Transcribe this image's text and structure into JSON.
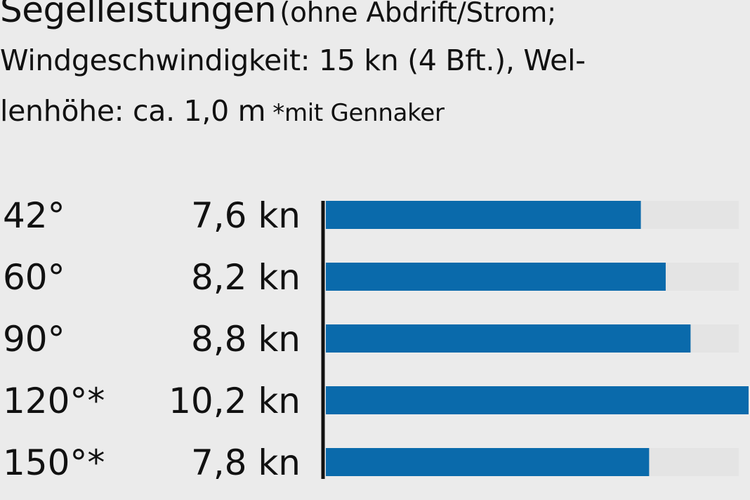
{
  "header": {
    "title": "Segelleistungen",
    "subtitle_part1": "(ohne Abdrift/Strom;",
    "subtitle_line2": "Windgeschwindigkeit: 15 kn (4 Bft.), Wel-",
    "subtitle_line3": "lenhöhe: ca. 1,0 m",
    "note": "*mit Gennaker"
  },
  "chart_data": {
    "type": "bar",
    "orientation": "horizontal",
    "categories": [
      "42°",
      "60°",
      "90°",
      "120°*",
      "150°*"
    ],
    "values": [
      7.6,
      8.2,
      8.8,
      10.2,
      7.8
    ],
    "value_labels": [
      "7,6 kn",
      "8,2 kn",
      "8,8 kn",
      "10,2 kn",
      "7,8 kn"
    ],
    "unit": "kn",
    "xlim": [
      0,
      10.2
    ],
    "grid": false,
    "colors": {
      "bar": "#0a6aab",
      "track": "#e4e4e4",
      "axis": "#111111"
    }
  }
}
